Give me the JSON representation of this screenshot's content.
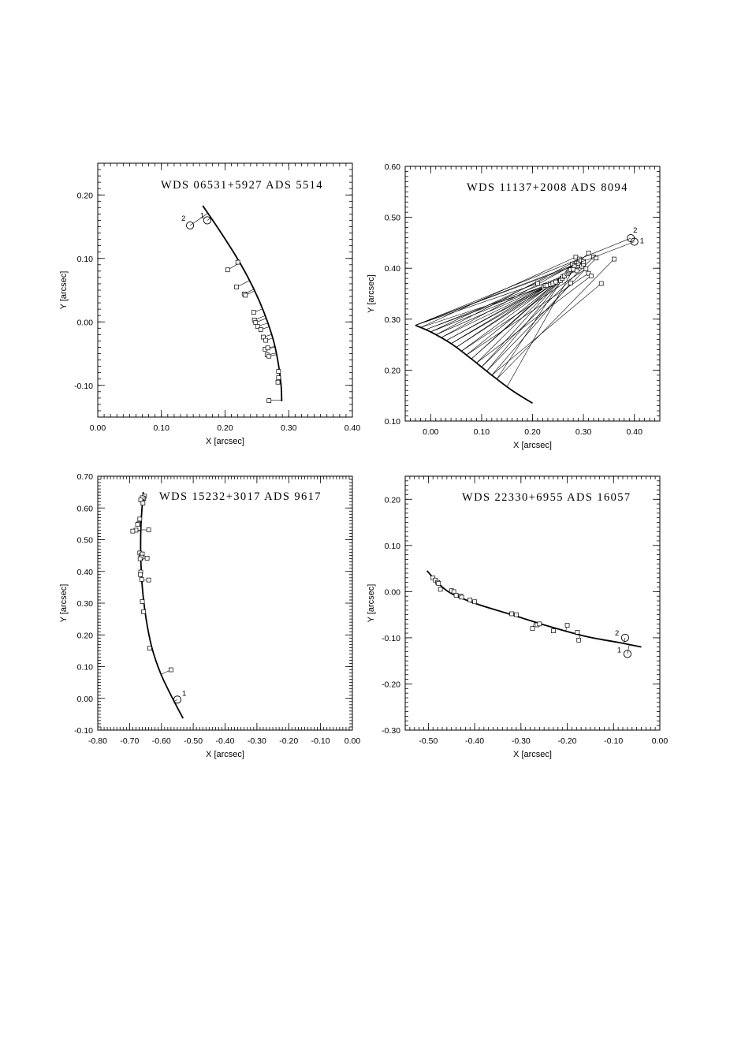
{
  "chart_data": [
    {
      "type": "scatter",
      "title": "WDS 06531+5927   ADS 5514",
      "xlabel": "X [arcsec]",
      "ylabel": "Y [arcsec]",
      "xlim": [
        0.0,
        0.4
      ],
      "ylim": [
        -0.15,
        0.25
      ],
      "xticks": [
        0.0,
        0.1,
        0.2,
        0.3,
        0.4
      ],
      "yticks": [
        -0.1,
        0.0,
        0.1,
        0.2
      ],
      "xtick_labels": [
        "0.00",
        "0.10",
        "0.20",
        "0.30",
        "0.40"
      ],
      "ytick_labels": [
        "-0.10",
        "0.00",
        "0.10",
        "0.20"
      ],
      "orbit": [
        [
          0.165,
          0.183
        ],
        [
          0.19,
          0.146
        ],
        [
          0.215,
          0.107
        ],
        [
          0.235,
          0.072
        ],
        [
          0.252,
          0.037
        ],
        [
          0.266,
          0.002
        ],
        [
          0.277,
          -0.033
        ],
        [
          0.284,
          -0.068
        ],
        [
          0.288,
          -0.1
        ],
        [
          0.289,
          -0.125
        ]
      ],
      "observations": [
        [
          0.22,
          0.094
        ],
        [
          0.204,
          0.082
        ],
        [
          0.218,
          0.055
        ],
        [
          0.23,
          0.044
        ],
        [
          0.232,
          0.042
        ],
        [
          0.245,
          0.015
        ],
        [
          0.246,
          0.003
        ],
        [
          0.248,
          -0.001
        ],
        [
          0.251,
          -0.007
        ],
        [
          0.256,
          -0.012
        ],
        [
          0.26,
          -0.024
        ],
        [
          0.264,
          -0.029
        ],
        [
          0.263,
          -0.043
        ],
        [
          0.267,
          -0.041
        ],
        [
          0.266,
          -0.052
        ],
        [
          0.269,
          -0.054
        ],
        [
          0.284,
          -0.078
        ],
        [
          0.284,
          -0.088
        ],
        [
          0.283,
          -0.095
        ],
        [
          0.269,
          -0.124
        ]
      ],
      "predicted": [
        {
          "label": "1",
          "x": 0.172,
          "y": 0.16
        },
        {
          "label": "2",
          "x": 0.145,
          "y": 0.152
        }
      ]
    },
    {
      "type": "scatter",
      "title": "WDS 11137+2008   ADS 8094",
      "xlabel": "X [arcsec]",
      "ylabel": "Y [arcsec]",
      "xlim": [
        -0.05,
        0.45
      ],
      "ylim": [
        0.1,
        0.6
      ],
      "xticks": [
        0.0,
        0.1,
        0.2,
        0.3,
        0.4
      ],
      "yticks": [
        0.1,
        0.2,
        0.3,
        0.4,
        0.5,
        0.6
      ],
      "xtick_labels": [
        "0.00",
        "0.10",
        "0.20",
        "0.30",
        "0.40"
      ],
      "ytick_labels": [
        "0.10",
        "0.20",
        "0.30",
        "0.40",
        "0.50",
        "0.60"
      ],
      "orbit": [
        [
          -0.03,
          0.288
        ],
        [
          0.0,
          0.275
        ],
        [
          0.04,
          0.252
        ],
        [
          0.08,
          0.222
        ],
        [
          0.12,
          0.19
        ],
        [
          0.16,
          0.16
        ],
        [
          0.2,
          0.135
        ]
      ],
      "observations": [
        [
          0.21,
          0.37
        ],
        [
          0.222,
          0.363
        ],
        [
          0.225,
          0.366
        ],
        [
          0.228,
          0.366
        ],
        [
          0.235,
          0.368
        ],
        [
          0.24,
          0.37
        ],
        [
          0.246,
          0.373
        ],
        [
          0.255,
          0.376
        ],
        [
          0.258,
          0.38
        ],
        [
          0.26,
          0.384
        ],
        [
          0.263,
          0.385
        ],
        [
          0.268,
          0.389
        ],
        [
          0.27,
          0.392
        ],
        [
          0.272,
          0.395
        ],
        [
          0.275,
          0.397
        ],
        [
          0.275,
          0.371
        ],
        [
          0.278,
          0.408
        ],
        [
          0.28,
          0.398
        ],
        [
          0.282,
          0.405
        ],
        [
          0.285,
          0.422
        ],
        [
          0.287,
          0.395
        ],
        [
          0.29,
          0.41
        ],
        [
          0.292,
          0.418
        ],
        [
          0.295,
          0.415
        ],
        [
          0.297,
          0.404
        ],
        [
          0.3,
          0.408
        ],
        [
          0.3,
          0.413
        ],
        [
          0.305,
          0.399
        ],
        [
          0.31,
          0.39
        ],
        [
          0.31,
          0.43
        ],
        [
          0.315,
          0.385
        ],
        [
          0.32,
          0.422
        ],
        [
          0.325,
          0.42
        ],
        [
          0.335,
          0.37
        ],
        [
          0.36,
          0.418
        ]
      ],
      "orbit_points": [
        -0.03,
        -0.02,
        -0.01,
        0.0,
        0.01,
        0.02,
        0.03,
        0.04,
        0.05,
        0.06,
        0.07,
        0.08,
        0.09,
        0.1,
        0.11,
        0.12,
        0.13,
        0.15
      ],
      "predicted": [
        {
          "label": "1",
          "x": 0.4,
          "y": 0.452
        },
        {
          "label": "2",
          "x": 0.393,
          "y": 0.459
        }
      ]
    },
    {
      "type": "scatter",
      "title": "WDS 15232+3017   ADS 9617",
      "xlabel": "X [arcsec]",
      "ylabel": "Y [arcsec]",
      "xlim": [
        -0.8,
        0.0
      ],
      "ylim": [
        -0.1,
        0.7
      ],
      "xticks": [
        -0.8,
        -0.7,
        -0.6,
        -0.5,
        -0.4,
        -0.3,
        -0.2,
        -0.1,
        0.0
      ],
      "yticks": [
        -0.1,
        0.0,
        0.1,
        0.2,
        0.3,
        0.4,
        0.5,
        0.6,
        0.7
      ],
      "xtick_labels": [
        "-0.80",
        "-0.70",
        "-0.60",
        "-0.50",
        "-0.40",
        "-0.30",
        "-0.20",
        "-0.10",
        "0.00"
      ],
      "ytick_labels": [
        "-0.10",
        "0.00",
        "0.10",
        "0.20",
        "0.30",
        "0.40",
        "0.50",
        "0.60",
        "0.70"
      ],
      "orbit": [
        [
          -0.657,
          0.65
        ],
        [
          -0.664,
          0.55
        ],
        [
          -0.665,
          0.45
        ],
        [
          -0.66,
          0.35
        ],
        [
          -0.648,
          0.25
        ],
        [
          -0.63,
          0.16
        ],
        [
          -0.603,
          0.08
        ],
        [
          -0.57,
          0.01
        ],
        [
          -0.532,
          -0.063
        ]
      ],
      "observations": [
        [
          -0.653,
          0.637
        ],
        [
          -0.656,
          0.63
        ],
        [
          -0.66,
          0.632
        ],
        [
          -0.665,
          0.625
        ],
        [
          -0.658,
          0.615
        ],
        [
          -0.668,
          0.565
        ],
        [
          -0.672,
          0.55
        ],
        [
          -0.675,
          0.548
        ],
        [
          -0.68,
          0.53
        ],
        [
          -0.69,
          0.527
        ],
        [
          -0.64,
          0.531
        ],
        [
          -0.668,
          0.458
        ],
        [
          -0.664,
          0.45
        ],
        [
          -0.66,
          0.455
        ],
        [
          -0.666,
          0.44
        ],
        [
          -0.662,
          0.445
        ],
        [
          -0.667,
          0.44
        ],
        [
          -0.645,
          0.442
        ],
        [
          -0.665,
          0.398
        ],
        [
          -0.666,
          0.39
        ],
        [
          -0.662,
          0.375
        ],
        [
          -0.64,
          0.373
        ],
        [
          -0.66,
          0.305
        ],
        [
          -0.656,
          0.273
        ],
        [
          -0.637,
          0.158
        ],
        [
          -0.57,
          0.09
        ]
      ],
      "predicted": [
        {
          "label": "1",
          "x": -0.55,
          "y": -0.004
        }
      ]
    },
    {
      "type": "scatter",
      "title": "WDS 22330+6955   ADS 16057",
      "xlabel": "X [arcsec]",
      "ylabel": "Y [arcsec]",
      "xlim": [
        -0.55,
        0.0
      ],
      "ylim": [
        -0.3,
        0.25
      ],
      "xticks": [
        -0.5,
        -0.4,
        -0.3,
        -0.2,
        -0.1,
        0.0
      ],
      "yticks": [
        -0.3,
        -0.2,
        -0.1,
        0.0,
        0.1,
        0.2
      ],
      "xtick_labels": [
        "-0.50",
        "-0.40",
        "-0.30",
        "-0.20",
        "-0.10",
        "0.00"
      ],
      "ytick_labels": [
        "-0.30",
        "-0.20",
        "-0.10",
        "0.00",
        "0.10",
        "0.20"
      ],
      "orbit": [
        [
          -0.503,
          0.045
        ],
        [
          -0.46,
          0.002
        ],
        [
          -0.4,
          -0.025
        ],
        [
          -0.32,
          -0.05
        ],
        [
          -0.24,
          -0.075
        ],
        [
          -0.16,
          -0.097
        ],
        [
          -0.09,
          -0.11
        ],
        [
          -0.04,
          -0.12
        ]
      ],
      "observations": [
        [
          -0.49,
          0.03
        ],
        [
          -0.485,
          0.025
        ],
        [
          -0.48,
          0.02
        ],
        [
          -0.478,
          0.018
        ],
        [
          -0.474,
          0.005
        ],
        [
          -0.45,
          0.002
        ],
        [
          -0.445,
          0.0
        ],
        [
          -0.44,
          -0.008
        ],
        [
          -0.43,
          -0.01
        ],
        [
          -0.428,
          -0.012
        ],
        [
          -0.41,
          -0.018
        ],
        [
          -0.4,
          -0.022
        ],
        [
          -0.32,
          -0.048
        ],
        [
          -0.31,
          -0.05
        ],
        [
          -0.275,
          -0.08
        ],
        [
          -0.265,
          -0.072
        ],
        [
          -0.26,
          -0.07
        ],
        [
          -0.23,
          -0.085
        ],
        [
          -0.2,
          -0.073
        ],
        [
          -0.178,
          -0.088
        ],
        [
          -0.175,
          -0.105
        ]
      ],
      "predicted": [
        {
          "label": "2",
          "x": -0.075,
          "y": -0.1
        },
        {
          "label": "1",
          "x": -0.07,
          "y": -0.135
        }
      ]
    }
  ]
}
